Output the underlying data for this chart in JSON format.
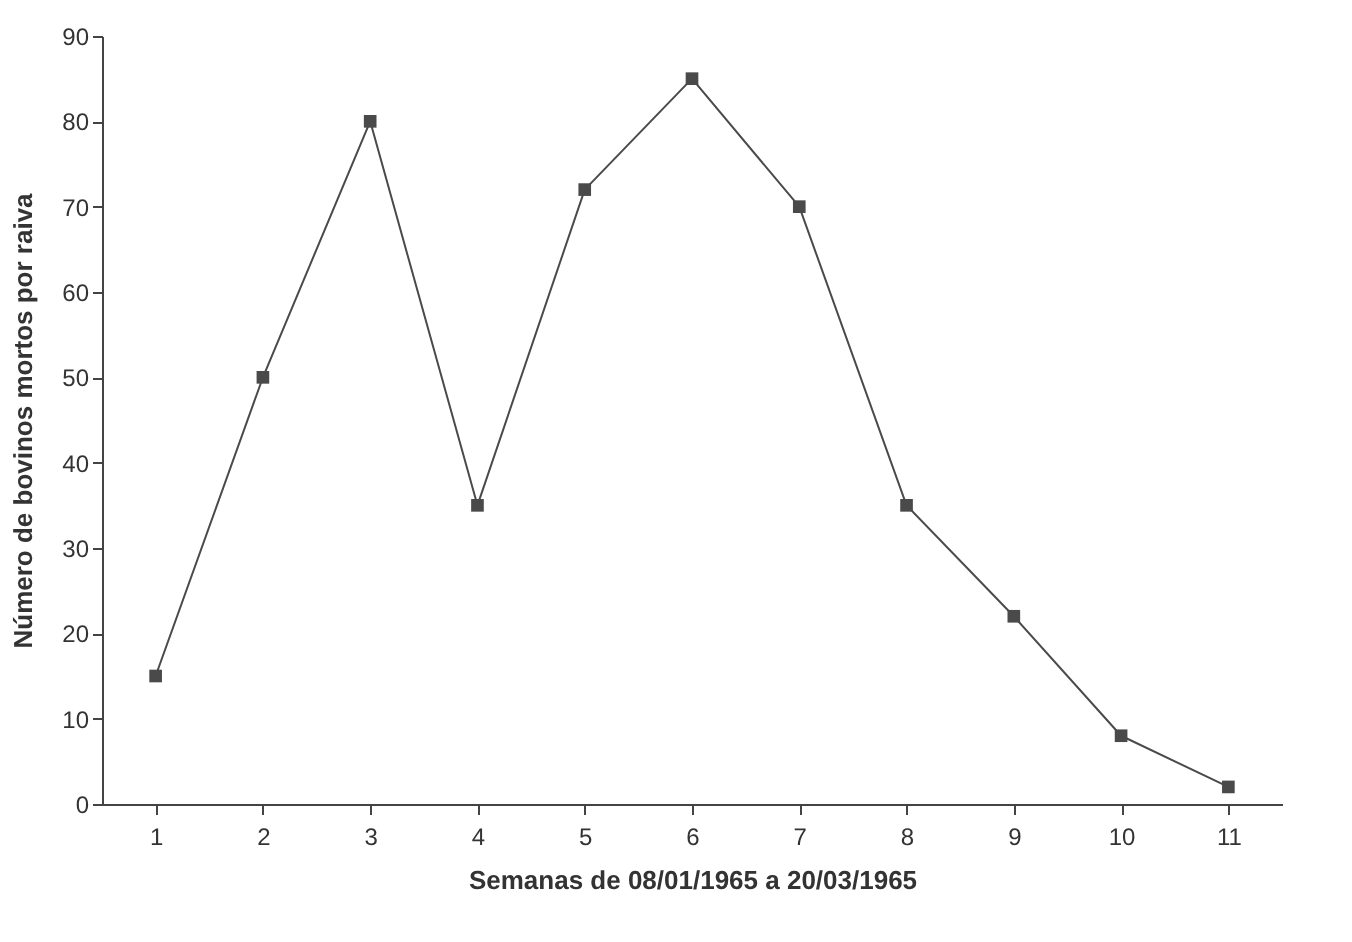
{
  "chart_data": {
    "type": "line",
    "xlabel": "Semanas de 08/01/1965 a 20/03/1965",
    "ylabel": "Número de bovinos mortos por raiva",
    "categories": [
      "1",
      "2",
      "3",
      "4",
      "5",
      "6",
      "7",
      "8",
      "9",
      "10",
      "11"
    ],
    "series": [
      {
        "color": "#4a4a4a",
        "values": [
          15,
          50,
          80,
          35,
          72,
          85,
          70,
          35,
          22,
          8,
          2
        ]
      }
    ],
    "ylim": [
      0,
      90
    ],
    "yticks": [
      0,
      10,
      20,
      30,
      40,
      50,
      60,
      70,
      80,
      90
    ],
    "marker": "square",
    "line_style": "solid",
    "grid": false,
    "legend": false
  }
}
